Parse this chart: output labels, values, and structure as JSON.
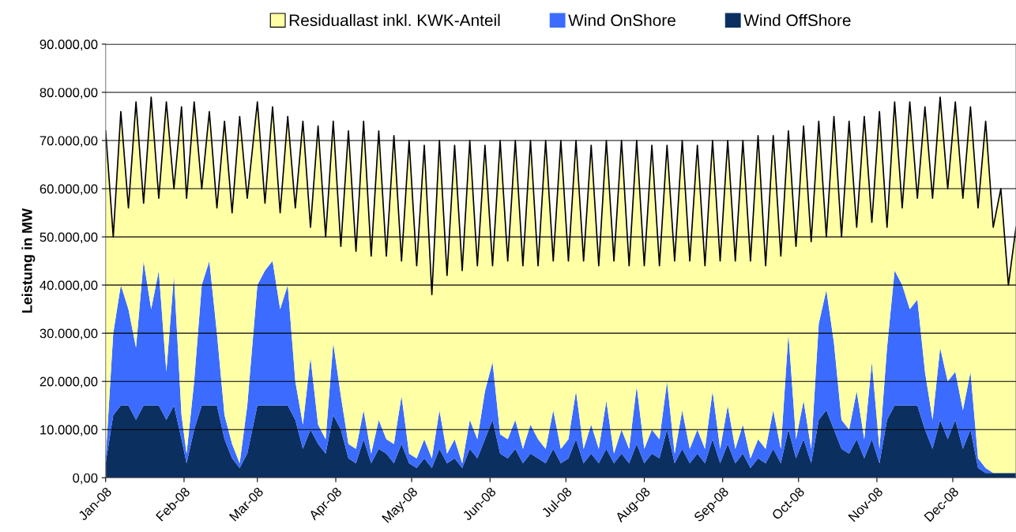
{
  "chart_data": {
    "type": "area",
    "stacked": true,
    "ylabel": "Leistung in MW",
    "x": [
      "2008-01-01",
      "2008-01-04",
      "2008-01-07",
      "2008-01-10",
      "2008-01-13",
      "2008-01-16",
      "2008-01-19",
      "2008-01-22",
      "2008-01-25",
      "2008-01-28",
      "2008-01-31",
      "2008-02-02",
      "2008-02-05",
      "2008-02-08",
      "2008-02-11",
      "2008-02-14",
      "2008-02-17",
      "2008-02-20",
      "2008-02-23",
      "2008-02-26",
      "2008-03-01",
      "2008-03-04",
      "2008-03-07",
      "2008-03-10",
      "2008-03-13",
      "2008-03-16",
      "2008-03-19",
      "2008-03-22",
      "2008-03-25",
      "2008-03-28",
      "2008-03-31",
      "2008-04-03",
      "2008-04-06",
      "2008-04-09",
      "2008-04-12",
      "2008-04-15",
      "2008-04-18",
      "2008-04-21",
      "2008-04-24",
      "2008-04-27",
      "2008-04-30",
      "2008-05-03",
      "2008-05-06",
      "2008-05-09",
      "2008-05-12",
      "2008-05-15",
      "2008-05-18",
      "2008-05-21",
      "2008-05-24",
      "2008-05-27",
      "2008-05-30",
      "2008-06-02",
      "2008-06-05",
      "2008-06-08",
      "2008-06-11",
      "2008-06-14",
      "2008-06-17",
      "2008-06-20",
      "2008-06-23",
      "2008-06-26",
      "2008-06-29",
      "2008-07-02",
      "2008-07-05",
      "2008-07-08",
      "2008-07-11",
      "2008-07-14",
      "2008-07-17",
      "2008-07-20",
      "2008-07-23",
      "2008-07-26",
      "2008-07-29",
      "2008-08-01",
      "2008-08-04",
      "2008-08-07",
      "2008-08-10",
      "2008-08-13",
      "2008-08-16",
      "2008-08-19",
      "2008-08-22",
      "2008-08-25",
      "2008-08-28",
      "2008-08-31",
      "2008-09-03",
      "2008-09-06",
      "2008-09-09",
      "2008-09-12",
      "2008-09-15",
      "2008-09-18",
      "2008-09-21",
      "2008-09-24",
      "2008-09-27",
      "2008-09-30",
      "2008-10-03",
      "2008-10-06",
      "2008-10-09",
      "2008-10-12",
      "2008-10-15",
      "2008-10-18",
      "2008-10-21",
      "2008-10-24",
      "2008-10-27",
      "2008-10-30",
      "2008-11-02",
      "2008-11-05",
      "2008-11-08",
      "2008-11-11",
      "2008-11-14",
      "2008-11-17",
      "2008-11-20",
      "2008-11-23",
      "2008-11-26",
      "2008-11-29",
      "2008-12-02",
      "2008-12-05",
      "2008-12-08",
      "2008-12-11",
      "2008-12-14",
      "2008-12-17",
      "2008-12-20",
      "2008-12-23",
      "2008-12-26"
    ],
    "series": [
      {
        "name": "Wind OffShore",
        "color": "#0b2f5f",
        "values": [
          3000,
          13000,
          15000,
          15000,
          12000,
          15000,
          15000,
          15000,
          12000,
          15000,
          8000,
          3000,
          10000,
          15000,
          15000,
          15000,
          8000,
          4000,
          2000,
          5000,
          15000,
          15000,
          15000,
          15000,
          15000,
          12000,
          6000,
          10000,
          7000,
          5000,
          13000,
          10000,
          4000,
          3000,
          8000,
          3000,
          6000,
          5000,
          3000,
          7000,
          3000,
          2000,
          4000,
          2000,
          6000,
          3000,
          4000,
          2000,
          6000,
          4000,
          8000,
          12000,
          5000,
          4000,
          6000,
          3000,
          5000,
          4000,
          3000,
          6000,
          3000,
          4000,
          8000,
          3000,
          5000,
          3000,
          6000,
          3000,
          5000,
          3000,
          7000,
          3000,
          5000,
          4000,
          10000,
          3000,
          6000,
          3000,
          5000,
          3000,
          8000,
          3000,
          7000,
          3000,
          5000,
          2000,
          4000,
          3000,
          6000,
          3000,
          10000,
          4000,
          8000,
          3000,
          12000,
          14000,
          10000,
          6000,
          5000,
          8000,
          4000,
          8000,
          3000,
          12000,
          15000,
          15000,
          15000,
          15000,
          10000,
          6000,
          12000,
          8000,
          12000,
          6000,
          10000,
          2000,
          1000,
          1000,
          1000,
          1000,
          1000
        ]
      },
      {
        "name": "Wind OnShore",
        "color": "#3b6cff",
        "values": [
          1000,
          17000,
          25000,
          20000,
          15000,
          30000,
          20000,
          28000,
          10000,
          27000,
          5000,
          2000,
          10000,
          25000,
          30000,
          15000,
          5000,
          3000,
          1000,
          10000,
          25000,
          28000,
          30000,
          20000,
          25000,
          8000,
          5000,
          15000,
          4000,
          3000,
          15000,
          7000,
          3000,
          3000,
          6000,
          2000,
          6000,
          3000,
          4000,
          10000,
          2000,
          2000,
          4000,
          2000,
          8000,
          2000,
          4000,
          1000,
          6000,
          4000,
          10000,
          12000,
          4000,
          4000,
          6000,
          3000,
          6000,
          4000,
          3000,
          8000,
          3000,
          4000,
          10000,
          3000,
          6000,
          3000,
          10000,
          2000,
          5000,
          3000,
          12000,
          3000,
          5000,
          4000,
          10000,
          2000,
          8000,
          3000,
          5000,
          3000,
          10000,
          3000,
          8000,
          3000,
          6000,
          2000,
          4000,
          3000,
          8000,
          3000,
          20000,
          4000,
          8000,
          3000,
          20000,
          25000,
          18000,
          6000,
          5000,
          10000,
          4000,
          16000,
          3000,
          15000,
          28000,
          25000,
          20000,
          22000,
          12000,
          6000,
          15000,
          12000,
          10000,
          8000,
          12000,
          2000,
          1000,
          0,
          0,
          0,
          0
        ]
      },
      {
        "name": "Residuallast inkl. KWK-Anteil",
        "color": "#ffffa6",
        "values": [
          68000,
          20000,
          36000,
          21000,
          51000,
          12000,
          44000,
          15000,
          56000,
          18000,
          64000,
          53000,
          58000,
          20000,
          31000,
          26000,
          61000,
          48000,
          72000,
          43000,
          38000,
          14000,
          32000,
          20000,
          35000,
          36000,
          63000,
          27000,
          62000,
          42000,
          46000,
          31000,
          65000,
          41000,
          60000,
          41000,
          60000,
          38000,
          64000,
          28000,
          65000,
          40000,
          61000,
          34000,
          56000,
          37000,
          61000,
          40000,
          58000,
          36000,
          51000,
          20000,
          61000,
          37000,
          58000,
          38000,
          59000,
          36000,
          64000,
          31000,
          64000,
          37000,
          52000,
          39000,
          58000,
          38000,
          54000,
          40000,
          60000,
          38000,
          51000,
          38000,
          59000,
          36000,
          49000,
          40000,
          56000,
          39000,
          59000,
          38000,
          52000,
          39000,
          55000,
          39000,
          59000,
          41000,
          63000,
          38000,
          57000,
          40000,
          42000,
          40000,
          57000,
          43000,
          42000,
          11000,
          47000,
          38000,
          64000,
          34000,
          67000,
          29000,
          70000,
          25000,
          35000,
          16000,
          43000,
          21000,
          55000,
          46000,
          52000,
          40000,
          56000,
          44000,
          55000,
          52000,
          72000,
          51000,
          59000,
          39000,
          51000
        ]
      }
    ],
    "xlim": [
      "2008-01-01",
      "2008-12-26"
    ],
    "xticks": [
      {
        "value": "2008-01-01",
        "label": "Jan-08"
      },
      {
        "value": "2008-02-01",
        "label": "Feb-08"
      },
      {
        "value": "2008-03-01",
        "label": "Mar-08"
      },
      {
        "value": "2008-04-01",
        "label": "Apr-08"
      },
      {
        "value": "2008-05-01",
        "label": "May-08"
      },
      {
        "value": "2008-06-01",
        "label": "Jun-08"
      },
      {
        "value": "2008-07-01",
        "label": "Jul-08"
      },
      {
        "value": "2008-08-01",
        "label": "Aug-08"
      },
      {
        "value": "2008-09-01",
        "label": "Sep-08"
      },
      {
        "value": "2008-10-01",
        "label": "Oct-08"
      },
      {
        "value": "2008-11-01",
        "label": "Nov-08"
      },
      {
        "value": "2008-12-01",
        "label": "Dec-08"
      }
    ],
    "ylim": [
      0,
      90000
    ],
    "yticks": [
      {
        "value": 0,
        "label": "0,00"
      },
      {
        "value": 10000,
        "label": "10.000,00"
      },
      {
        "value": 20000,
        "label": "20.000,00"
      },
      {
        "value": 30000,
        "label": "30.000,00"
      },
      {
        "value": 40000,
        "label": "40.000,00"
      },
      {
        "value": 50000,
        "label": "50.000,00"
      },
      {
        "value": 60000,
        "label": "60.000,00"
      },
      {
        "value": 70000,
        "label": "70.000,00"
      },
      {
        "value": 80000,
        "label": "80.000,00"
      },
      {
        "value": 90000,
        "label": "90.000,00"
      }
    ],
    "grid": "y",
    "legend": "top"
  }
}
